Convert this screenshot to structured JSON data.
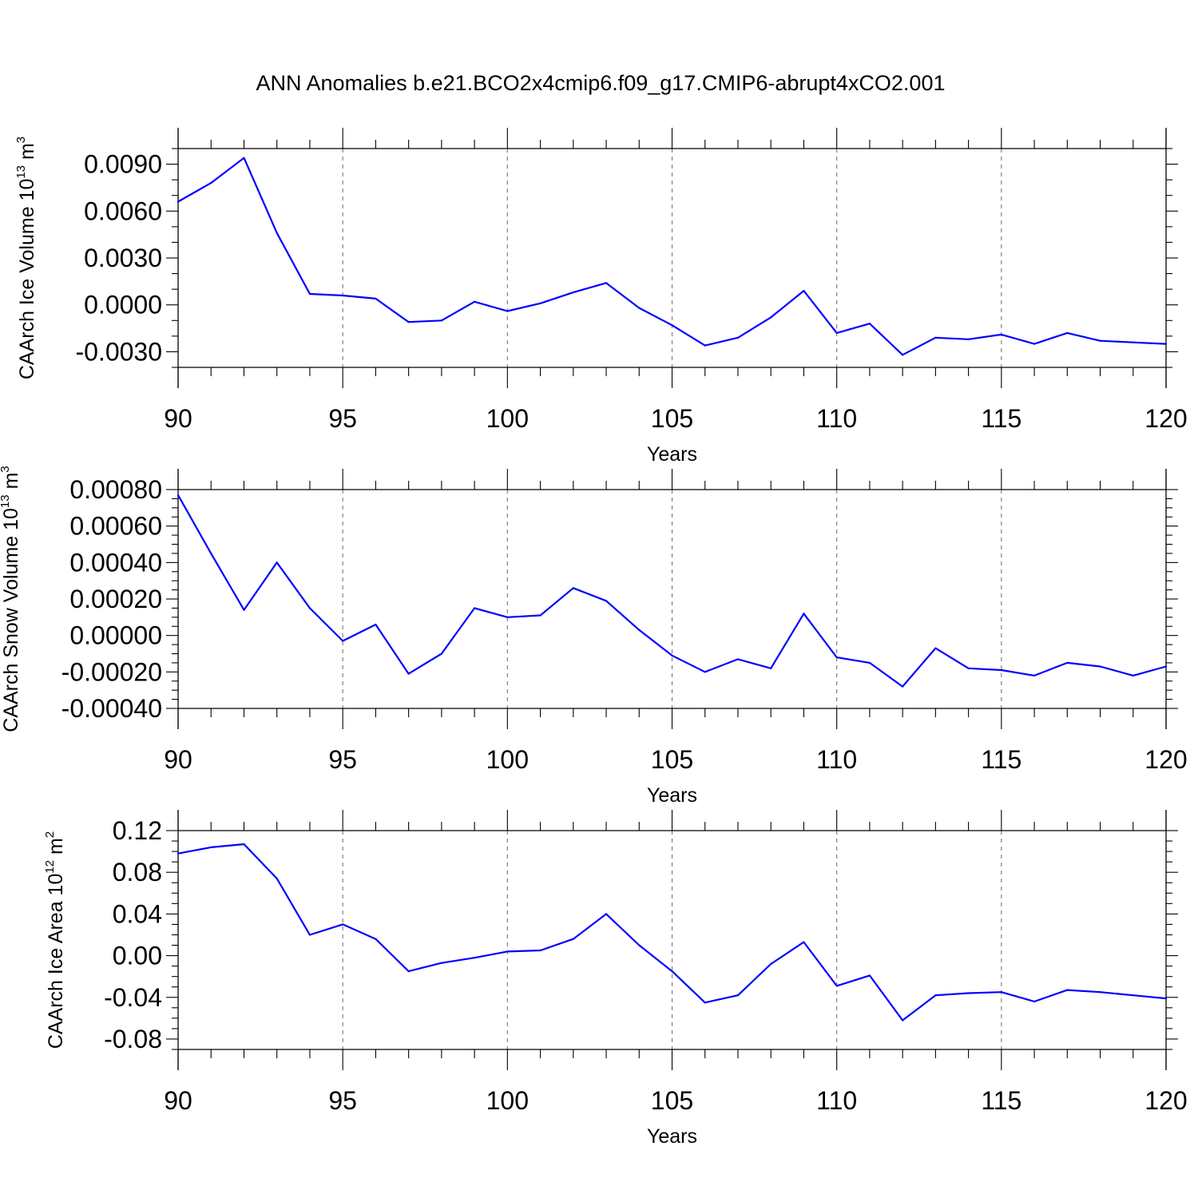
{
  "title": "ANN Anomalies b.e21.BCO2x4cmip6.f09_g17.CMIP6-abrupt4xCO2.001",
  "chart_data": [
    {
      "type": "line",
      "xlabel": "Years",
      "ylabel": {
        "text": "CAArch Ice Volume 10",
        "exp": "13",
        "unit": "m",
        "unit_exp": "3"
      },
      "xlim": [
        90,
        120
      ],
      "ylim": [
        -0.004,
        0.01
      ],
      "x_major_ticks": [
        90,
        95,
        100,
        105,
        110,
        115,
        120
      ],
      "x_tick_labels": [
        "90",
        "95",
        "100",
        "105",
        "110",
        "115",
        "120"
      ],
      "y_major_ticks": [
        -0.003,
        0.0,
        0.003,
        0.006,
        0.009
      ],
      "y_tick_labels": [
        "-0.0030",
        "0.0000",
        "0.0030",
        "0.0060",
        "0.0090"
      ],
      "y_minor_step": 0.001,
      "grid": "vertical-dashed",
      "series": [
        {
          "name": "CAArch Ice Volume",
          "color": "#0000ff",
          "x": [
            90,
            91,
            92,
            93,
            94,
            95,
            96,
            97,
            98,
            99,
            100,
            101,
            102,
            103,
            104,
            105,
            106,
            107,
            108,
            109,
            110,
            111,
            112,
            113,
            114,
            115,
            116,
            117,
            118,
            119,
            120
          ],
          "values": [
            0.0066,
            0.0078,
            0.0094,
            0.0046,
            0.0007,
            0.0006,
            0.0004,
            -0.0011,
            -0.001,
            0.0002,
            -0.0004,
            0.0001,
            0.0008,
            0.0014,
            -0.0002,
            -0.0013,
            -0.0026,
            -0.0021,
            -0.0008,
            0.0009,
            -0.0018,
            -0.0012,
            -0.0032,
            -0.0021,
            -0.0022,
            -0.0019,
            -0.0025,
            -0.0018,
            -0.0023,
            -0.0024,
            -0.0025
          ]
        }
      ]
    },
    {
      "type": "line",
      "xlabel": "Years",
      "ylabel": {
        "text": "CAArch Snow Volume 10",
        "exp": "13",
        "unit": "m",
        "unit_exp": "3"
      },
      "xlim": [
        90,
        120
      ],
      "ylim": [
        -0.0004,
        0.0008
      ],
      "x_major_ticks": [
        90,
        95,
        100,
        105,
        110,
        115,
        120
      ],
      "x_tick_labels": [
        "90",
        "95",
        "100",
        "105",
        "110",
        "115",
        "120"
      ],
      "y_major_ticks": [
        -0.0004,
        -0.0002,
        0.0,
        0.0002,
        0.0004,
        0.0006,
        0.0008
      ],
      "y_tick_labels": [
        "-0.00040",
        "-0.00020",
        "0.00000",
        "0.00020",
        "0.00040",
        "0.00060",
        "0.00080"
      ],
      "y_minor_step": 5e-05,
      "grid": "vertical-dashed",
      "series": [
        {
          "name": "CAArch Snow Volume",
          "color": "#0000ff",
          "x": [
            90,
            91,
            92,
            93,
            94,
            95,
            96,
            97,
            98,
            99,
            100,
            101,
            102,
            103,
            104,
            105,
            106,
            107,
            108,
            109,
            110,
            111,
            112,
            113,
            114,
            115,
            116,
            117,
            118,
            119,
            120
          ],
          "values": [
            0.00077,
            0.00045,
            0.00014,
            0.0004,
            0.00015,
            -3e-05,
            6e-05,
            -0.00021,
            -0.0001,
            0.00015,
            0.0001,
            0.00011,
            0.00026,
            0.00019,
            3e-05,
            -0.00011,
            -0.0002,
            -0.00013,
            -0.00018,
            0.00012,
            -0.00012,
            -0.00015,
            -0.00028,
            -7e-05,
            -0.00018,
            -0.00019,
            -0.00022,
            -0.00015,
            -0.00017,
            -0.00022,
            -0.00017
          ]
        }
      ]
    },
    {
      "type": "line",
      "xlabel": "Years",
      "ylabel": {
        "text": "CAArch Ice Area 10",
        "exp": "12",
        "unit": "m",
        "unit_exp": "2"
      },
      "xlim": [
        90,
        120
      ],
      "ylim": [
        -0.09,
        0.12
      ],
      "x_major_ticks": [
        90,
        95,
        100,
        105,
        110,
        115,
        120
      ],
      "x_tick_labels": [
        "90",
        "95",
        "100",
        "105",
        "110",
        "115",
        "120"
      ],
      "y_major_ticks": [
        -0.08,
        -0.04,
        0.0,
        0.04,
        0.08,
        0.12
      ],
      "y_tick_labels": [
        "-0.08",
        "-0.04",
        "0.00",
        "0.04",
        "0.08",
        "0.12"
      ],
      "y_minor_step": 0.01,
      "grid": "vertical-dashed",
      "series": [
        {
          "name": "CAArch Ice Area",
          "color": "#0000ff",
          "x": [
            90,
            91,
            92,
            93,
            94,
            95,
            96,
            97,
            98,
            99,
            100,
            101,
            102,
            103,
            104,
            105,
            106,
            107,
            108,
            109,
            110,
            111,
            112,
            113,
            114,
            115,
            116,
            117,
            118,
            119,
            120
          ],
          "values": [
            0.098,
            0.104,
            0.107,
            0.074,
            0.02,
            0.03,
            0.016,
            -0.015,
            -0.007,
            -0.002,
            0.004,
            0.005,
            0.016,
            0.04,
            0.01,
            -0.015,
            -0.045,
            -0.038,
            -0.008,
            0.013,
            -0.029,
            -0.019,
            -0.062,
            -0.038,
            -0.036,
            -0.035,
            -0.044,
            -0.033,
            -0.035,
            -0.038,
            -0.041
          ]
        }
      ]
    }
  ]
}
